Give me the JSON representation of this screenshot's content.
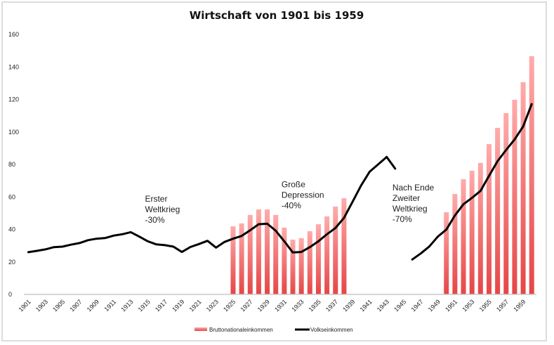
{
  "chart_data": {
    "type": "bar+line",
    "title": "Wirtschaft von 1901 bis 1959",
    "xlabel": "",
    "ylabel": "",
    "ylim": [
      0,
      160
    ],
    "yticks": [
      "0",
      "20",
      "40",
      "60",
      "80",
      "100",
      "120",
      "140",
      "160"
    ],
    "ytick_values": [
      0,
      20,
      40,
      60,
      80,
      100,
      120,
      140,
      160
    ],
    "x_first": 1901,
    "x_last": 1960,
    "xtick_labels": [
      "1901",
      "1903",
      "1905",
      "1907",
      "1909",
      "1911",
      "1913",
      "1915",
      "1917",
      "1919",
      "1921",
      "1923",
      "1925",
      "1927",
      "1929",
      "1931",
      "1933",
      "1935",
      "1937",
      "1939",
      "1941",
      "1943",
      "1945",
      "1947",
      "1949",
      "1951",
      "1953",
      "1955",
      "1957",
      "1959"
    ],
    "grid": false,
    "legend_position": "bottom",
    "series": [
      {
        "name": "Bruttonationaleinkommen",
        "kind": "bar",
        "color_top": "#ffabab",
        "color_bottom": "#e64545",
        "points": [
          [
            1925,
            41.9
          ],
          [
            1926,
            43.7
          ],
          [
            1927,
            48.9
          ],
          [
            1928,
            52.3
          ],
          [
            1929,
            52.3
          ],
          [
            1930,
            48.9
          ],
          [
            1931,
            41.1
          ],
          [
            1932,
            33.7
          ],
          [
            1933,
            34.6
          ],
          [
            1934,
            38.9
          ],
          [
            1935,
            43.2
          ],
          [
            1936,
            48.0
          ],
          [
            1937,
            54.1
          ],
          [
            1938,
            59.2
          ],
          [
            1950,
            50.6
          ],
          [
            1951,
            61.8
          ],
          [
            1952,
            70.9
          ],
          [
            1953,
            76.1
          ],
          [
            1954,
            80.9
          ],
          [
            1955,
            92.5
          ],
          [
            1956,
            102.5
          ],
          [
            1957,
            111.6
          ],
          [
            1958,
            119.8
          ],
          [
            1959,
            130.6
          ],
          [
            1960,
            146.6
          ]
        ]
      },
      {
        "name": "Volkseinkommen",
        "kind": "line",
        "color": "#000000",
        "segments": [
          [
            [
              1901,
              26.0
            ],
            [
              1902,
              26.8
            ],
            [
              1903,
              27.7
            ],
            [
              1904,
              29.1
            ],
            [
              1905,
              29.4
            ],
            [
              1906,
              30.6
            ],
            [
              1907,
              31.6
            ],
            [
              1908,
              33.4
            ],
            [
              1909,
              34.3
            ],
            [
              1910,
              34.7
            ],
            [
              1911,
              36.2
            ],
            [
              1912,
              37.0
            ],
            [
              1913,
              38.3
            ],
            [
              1914,
              35.6
            ],
            [
              1915,
              32.7
            ],
            [
              1916,
              30.8
            ],
            [
              1917,
              30.3
            ],
            [
              1918,
              29.4
            ],
            [
              1919,
              26.1
            ],
            [
              1920,
              29.2
            ],
            [
              1921,
              31.0
            ],
            [
              1922,
              33.0
            ],
            [
              1923,
              28.8
            ],
            [
              1924,
              32.3
            ],
            [
              1925,
              34.3
            ],
            [
              1926,
              36.0
            ],
            [
              1927,
              39.5
            ],
            [
              1928,
              43.2
            ],
            [
              1929,
              43.5
            ],
            [
              1930,
              39.2
            ],
            [
              1931,
              32.7
            ],
            [
              1932,
              25.8
            ],
            [
              1933,
              26.1
            ],
            [
              1934,
              29.1
            ],
            [
              1935,
              32.7
            ],
            [
              1936,
              37.0
            ],
            [
              1937,
              40.9
            ],
            [
              1938,
              47.1
            ],
            [
              1939,
              57.0
            ],
            [
              1940,
              67.0
            ],
            [
              1941,
              75.5
            ],
            [
              1942,
              80.0
            ],
            [
              1943,
              84.6
            ],
            [
              1944,
              77.4
            ]
          ],
          [
            [
              1946,
              21.5
            ],
            [
              1947,
              25.2
            ],
            [
              1948,
              29.5
            ],
            [
              1949,
              35.6
            ],
            [
              1950,
              39.9
            ],
            [
              1951,
              48.6
            ],
            [
              1952,
              55.5
            ],
            [
              1953,
              59.4
            ],
            [
              1954,
              63.7
            ],
            [
              1955,
              73.0
            ],
            [
              1956,
              82.0
            ],
            [
              1957,
              88.9
            ],
            [
              1958,
              95.4
            ],
            [
              1959,
              103.4
            ],
            [
              1960,
              117.1
            ]
          ]
        ]
      }
    ],
    "annotations": [
      {
        "year": 1915,
        "value": 57,
        "lines": [
          "Erster",
          "Weltkrieg",
          "-30%"
        ]
      },
      {
        "year": 1931,
        "value": 66,
        "lines": [
          "Große",
          "Depression",
          "-40%"
        ]
      },
      {
        "year": 1944,
        "value": 64,
        "lines": [
          "Nach Ende",
          "Zweiter",
          "Weltkrieg",
          "-70%"
        ]
      }
    ]
  }
}
